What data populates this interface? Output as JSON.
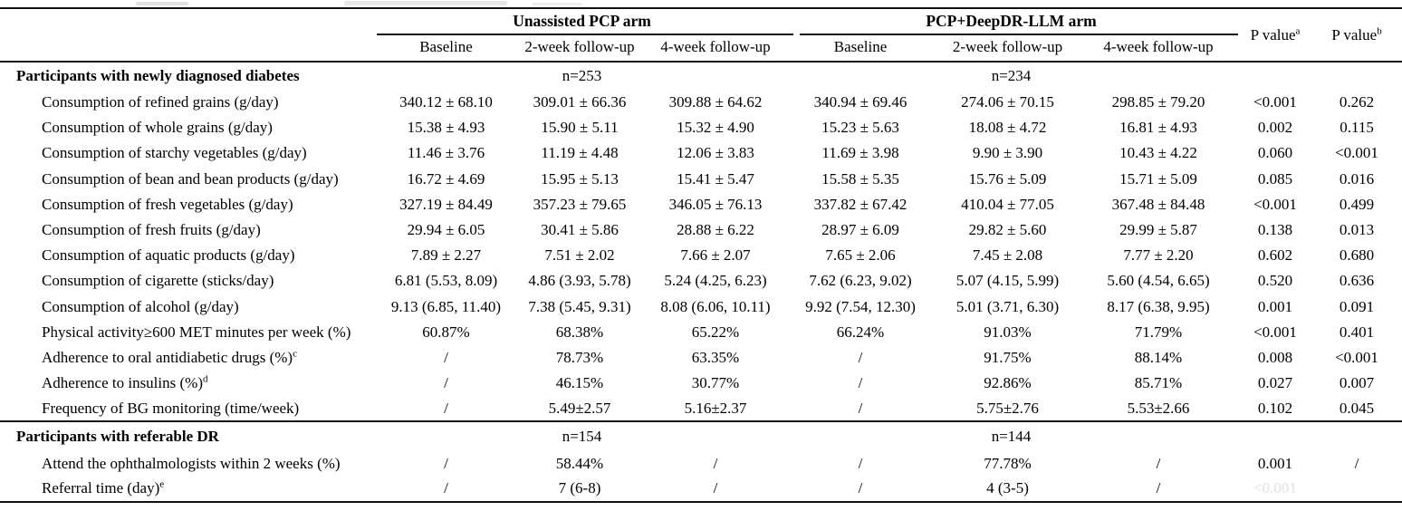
{
  "colors": {
    "rule": "#111111",
    "text": "#000000",
    "faded_text": "#c3c6c3",
    "background": "#ffffff"
  },
  "table": {
    "arm_headers": [
      "Unassisted PCP arm",
      "PCP+DeepDR-LLM arm"
    ],
    "sub_headers": [
      "Baseline",
      "2-week follow-up",
      "4-week follow-up",
      "Baseline",
      "2-week follow-up",
      "4-week follow-up"
    ],
    "pvalue_headers": [
      {
        "text": "P value",
        "sup": "a"
      },
      {
        "text": "P value",
        "sup": "b"
      }
    ],
    "sections": [
      {
        "title": "Participants with newly diagnosed diabetes",
        "n_left": "n=253",
        "n_right": "n=234",
        "rows": [
          {
            "label": "Consumption of refined grains (g/day)",
            "values": [
              "340.12 ± 68.10",
              "309.01 ± 66.36",
              "309.88 ± 64.62",
              "340.94 ± 69.46",
              "274.06 ± 70.15",
              "298.85 ± 79.20",
              "<0.001",
              "0.262"
            ]
          },
          {
            "label": "Consumption of whole grains (g/day)",
            "values": [
              "15.38 ± 4.93",
              "15.90 ± 5.11",
              "15.32 ± 4.90",
              "15.23 ± 5.63",
              "18.08 ± 4.72",
              "16.81 ± 4.93",
              "0.002",
              "0.115"
            ]
          },
          {
            "label": "Consumption of starchy vegetables (g/day)",
            "values": [
              "11.46 ± 3.76",
              "11.19 ± 4.48",
              "12.06 ± 3.83",
              "11.69 ± 3.98",
              "9.90 ± 3.90",
              "10.43 ± 4.22",
              "0.060",
              "<0.001"
            ]
          },
          {
            "label": "Consumption of bean and bean products (g/day)",
            "values": [
              "16.72 ± 4.69",
              "15.95 ± 5.13",
              "15.41 ± 5.47",
              "15.58 ± 5.35",
              "15.76 ± 5.09",
              "15.71 ± 5.09",
              "0.085",
              "0.016"
            ]
          },
          {
            "label": "Consumption of fresh vegetables (g/day)",
            "values": [
              "327.19 ± 84.49",
              "357.23 ± 79.65",
              "346.05 ± 76.13",
              "337.82 ± 67.42",
              "410.04 ± 77.05",
              "367.48 ± 84.48",
              "<0.001",
              "0.499"
            ]
          },
          {
            "label": "Consumption of fresh fruits (g/day)",
            "values": [
              "29.94 ± 6.05",
              "30.41 ± 5.86",
              "28.88 ± 6.22",
              "28.97 ± 6.09",
              "29.82 ± 5.60",
              "29.99 ± 5.87",
              "0.138",
              "0.013"
            ]
          },
          {
            "label": "Consumption of aquatic products (g/day)",
            "values": [
              "7.89 ± 2.27",
              "7.51 ± 2.02",
              "7.66 ± 2.07",
              "7.65 ± 2.06",
              "7.45 ± 2.08",
              "7.77 ± 2.20",
              "0.602",
              "0.680"
            ]
          },
          {
            "label": "Consumption of cigarette (sticks/day)",
            "values": [
              "6.81 (5.53, 8.09)",
              "4.86 (3.93, 5.78)",
              "5.24 (4.25, 6.23)",
              "7.62 (6.23, 9.02)",
              "5.07 (4.15, 5.99)",
              "5.60 (4.54, 6.65)",
              "0.520",
              "0.636"
            ]
          },
          {
            "label": "Consumption of alcohol (g/day)",
            "values": [
              "9.13 (6.85, 11.40)",
              "7.38 (5.45, 9.31)",
              "8.08 (6.06, 10.11)",
              "9.92 (7.54, 12.30)",
              "5.01 (3.71, 6.30)",
              "8.17 (6.38, 9.95)",
              "0.001",
              "0.091"
            ]
          },
          {
            "label": "Physical activity≥600 MET minutes per week (%)",
            "values": [
              "60.87%",
              "68.38%",
              "65.22%",
              "66.24%",
              "91.03%",
              "71.79%",
              "<0.001",
              "0.401"
            ]
          },
          {
            "label": "Adherence to oral antidiabetic drugs (%)",
            "sup": "c",
            "values": [
              "/",
              "78.73%",
              "63.35%",
              "/",
              "91.75%",
              "88.14%",
              "0.008",
              "<0.001"
            ]
          },
          {
            "label": "Adherence to insulins (%)",
            "sup": "d",
            "values": [
              "/",
              "46.15%",
              "30.77%",
              "/",
              "92.86%",
              "85.71%",
              "0.027",
              "0.007"
            ]
          },
          {
            "label": "Frequency of BG monitoring (time/week)",
            "values": [
              "/",
              "5.49±2.57",
              "5.16±2.37",
              "/",
              "5.75±2.76",
              "5.53±2.66",
              "0.102",
              "0.045"
            ]
          }
        ]
      },
      {
        "title": "Participants with referable DR",
        "n_left": "n=154",
        "n_right": "n=144",
        "rows": [
          {
            "label": "Attend the ophthalmologists within 2 weeks (%)",
            "values": [
              "/",
              "58.44%",
              "/",
              "/",
              "77.78%",
              "/",
              "0.001",
              "/"
            ]
          },
          {
            "label": "Referral time (day)",
            "sup": "e",
            "values": [
              "/",
              "7 (6-8)",
              "/",
              "/",
              "4 (3-5)",
              "/",
              "<0.001",
              ""
            ],
            "faded_pa": true
          }
        ]
      }
    ]
  }
}
